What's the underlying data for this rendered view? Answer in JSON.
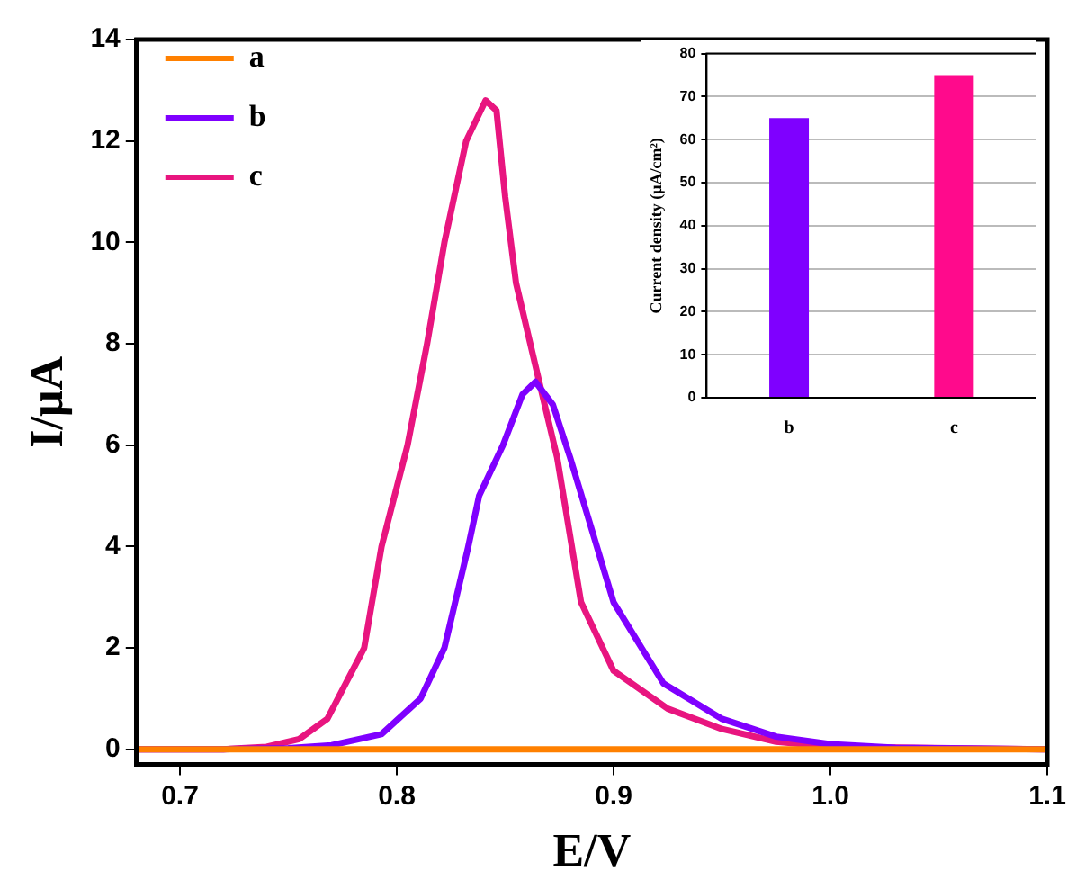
{
  "chart_data": [
    {
      "type": "line",
      "xlabel": "E/V",
      "ylabel": "I/μA",
      "xlim": [
        0.68,
        1.1
      ],
      "xticks": [
        {
          "value": 0.7,
          "label": "0.7"
        },
        {
          "value": 0.8,
          "label": "0.8"
        },
        {
          "value": 0.9,
          "label": "0.9"
        },
        {
          "value": 1.0,
          "label": "1.0"
        },
        {
          "value": 1.1,
          "label": "1.1"
        }
      ],
      "ylim": [
        -0.3,
        14
      ],
      "yticks": [
        0,
        2,
        4,
        6,
        8,
        10,
        12,
        14
      ],
      "grid": false,
      "legend": "top left",
      "marker": "none",
      "line_style": "solid",
      "series": [
        {
          "name": "a",
          "color": "#ff8000",
          "x": [
            0.68,
            0.8,
            0.9,
            1.0,
            1.1
          ],
          "values": [
            0,
            0,
            0,
            0,
            0
          ]
        },
        {
          "name": "b",
          "color": "#7f00ff",
          "x": [
            0.68,
            0.72,
            0.75,
            0.77,
            0.793,
            0.811,
            0.822,
            0.833,
            0.838,
            0.849,
            0.858,
            0.864,
            0.872,
            0.88,
            0.9,
            0.923,
            0.95,
            0.975,
            1.0,
            1.03,
            1.1
          ],
          "values": [
            0,
            0,
            0.02,
            0.08,
            0.3,
            1,
            2,
            4,
            5,
            6,
            7,
            7.25,
            6.8,
            5.75,
            2.9,
            1.3,
            0.6,
            0.25,
            0.1,
            0.03,
            0
          ]
        },
        {
          "name": "c",
          "color": "#e8157f",
          "x": [
            0.68,
            0.72,
            0.74,
            0.755,
            0.768,
            0.785,
            0.793,
            0.805,
            0.814,
            0.822,
            0.832,
            0.841,
            0.846,
            0.85,
            0.855,
            0.866,
            0.874,
            0.885,
            0.9,
            0.925,
            0.95,
            0.975,
            1.0,
            1.1
          ],
          "values": [
            0,
            0,
            0.05,
            0.2,
            0.6,
            2,
            4,
            6,
            8,
            10,
            12,
            12.8,
            12.6,
            10.9,
            9.2,
            7.2,
            5.75,
            2.9,
            1.55,
            0.8,
            0.4,
            0.15,
            0.05,
            0
          ]
        }
      ]
    },
    {
      "type": "bar",
      "ylabel": "Current density (μA/cm²)",
      "categories": [
        "b",
        "c"
      ],
      "values": [
        65,
        75
      ],
      "colors": [
        "#7f00ff",
        "#ff0a8c"
      ],
      "ylim": [
        0,
        80
      ],
      "yticks": [
        0,
        10,
        20,
        30,
        40,
        50,
        60,
        70,
        80
      ],
      "grid": "y"
    }
  ]
}
